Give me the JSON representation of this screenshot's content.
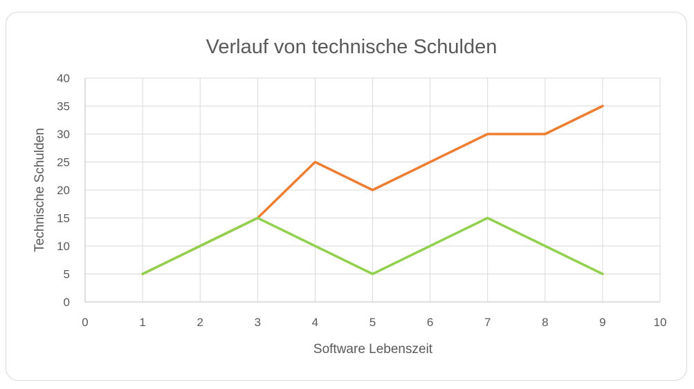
{
  "chart_data": {
    "type": "line",
    "title": "Verlauf von technische Schulden",
    "xlabel": "Software Lebenszeit",
    "ylabel": "Technische Schulden",
    "xlim": [
      0,
      10
    ],
    "ylim": [
      0,
      40
    ],
    "x_ticks": [
      "0",
      "1",
      "2",
      "3",
      "4",
      "5",
      "6",
      "7",
      "8",
      "9",
      "10"
    ],
    "y_ticks": [
      "0",
      "5",
      "10",
      "15",
      "20",
      "25",
      "30",
      "35",
      "40"
    ],
    "grid": true,
    "legend": "none",
    "series": [
      {
        "color": "#ed7d31",
        "x": [
          1,
          2,
          3,
          4,
          5,
          6,
          7,
          8,
          9
        ],
        "values": [
          5,
          10,
          15,
          25,
          20,
          25,
          30,
          30,
          35
        ]
      },
      {
        "color": "#92d050",
        "x": [
          1,
          2,
          3,
          4,
          5,
          6,
          7,
          8,
          9
        ],
        "values": [
          5,
          10,
          15,
          10,
          5,
          10,
          15,
          10,
          5
        ]
      }
    ]
  }
}
